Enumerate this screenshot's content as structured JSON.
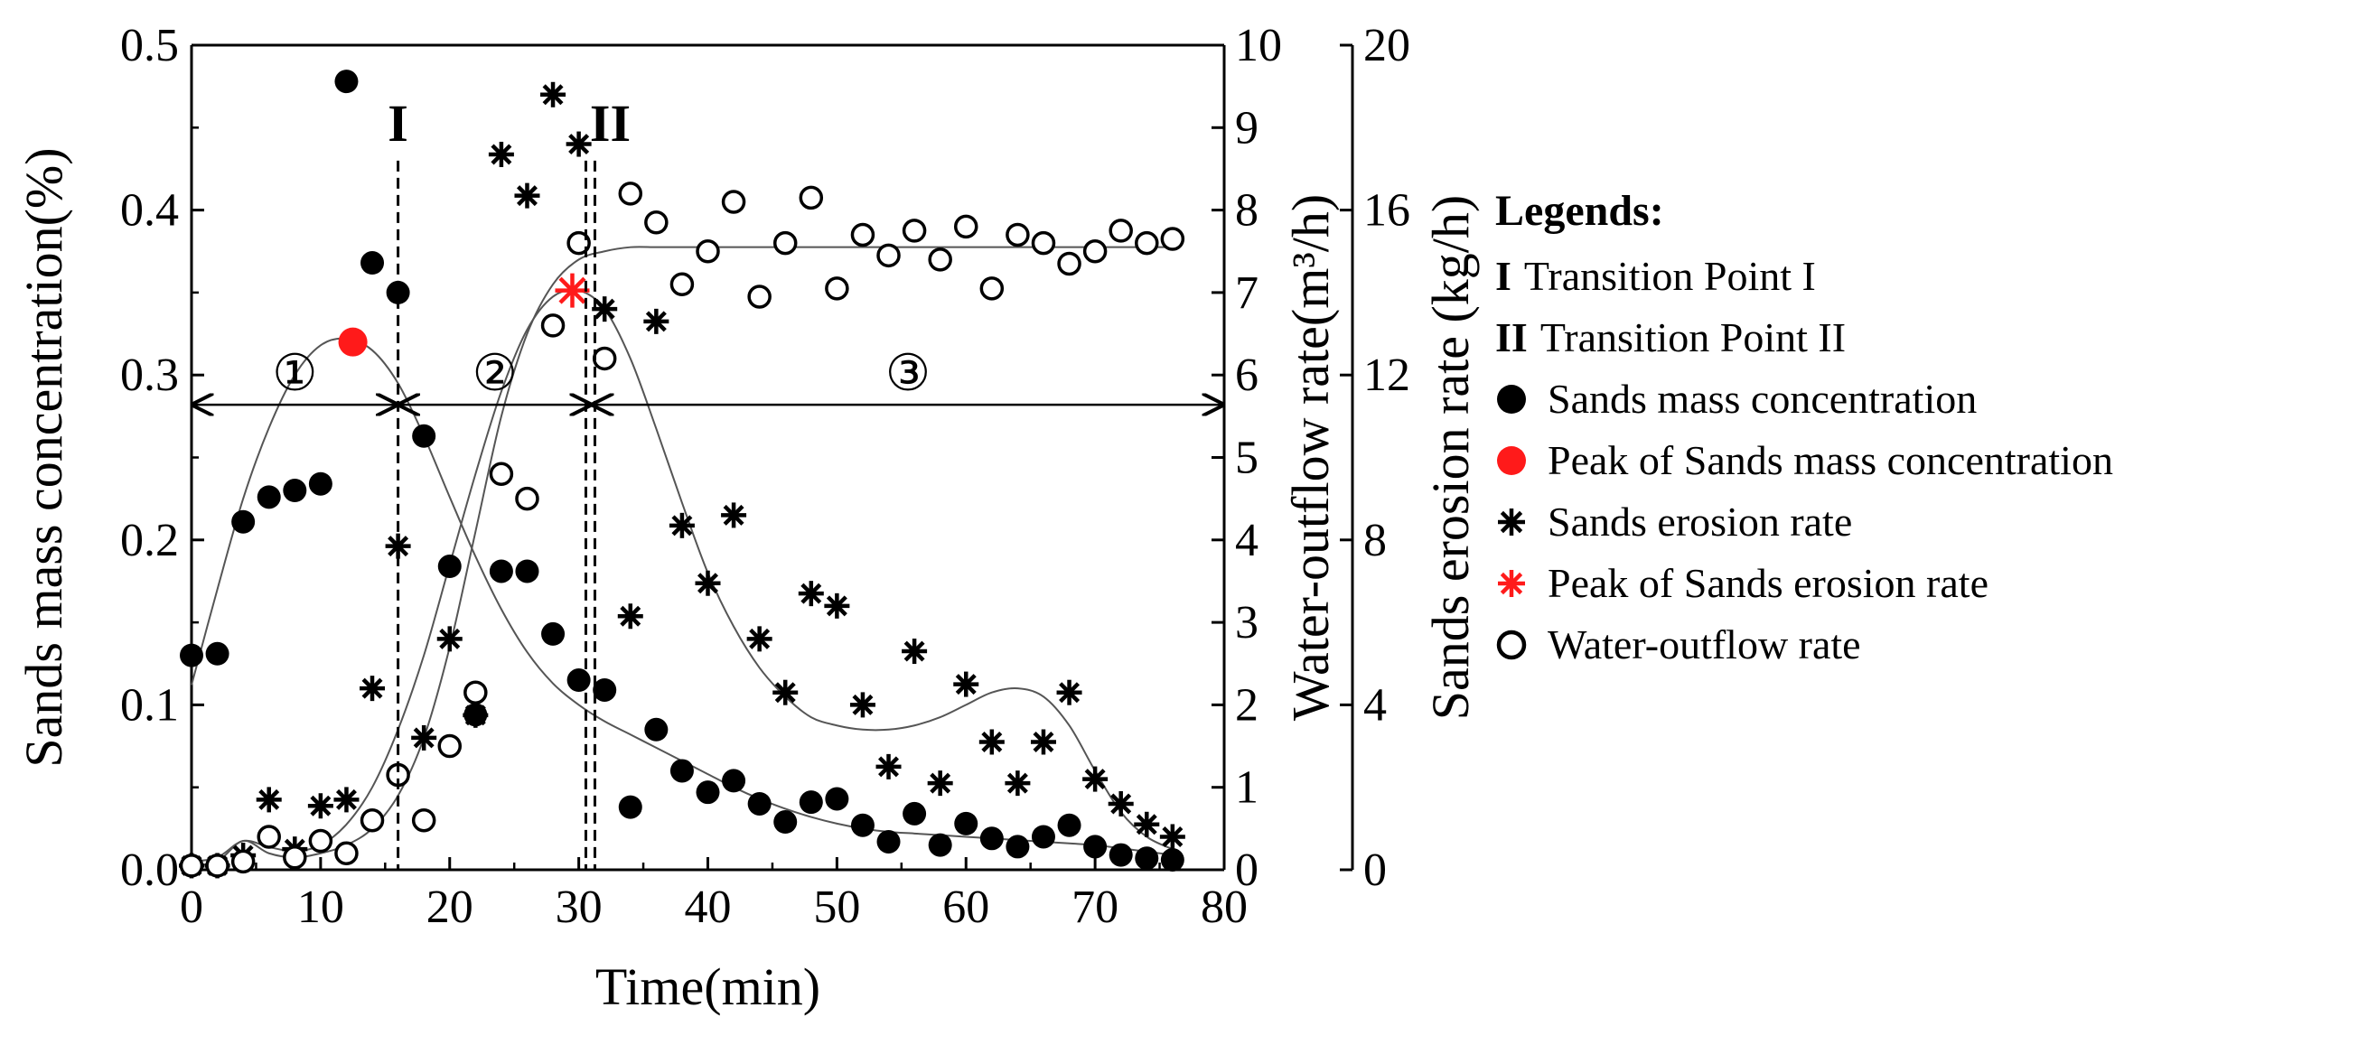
{
  "chart_data": {
    "type": "scatter",
    "xlabel": "Time(min)",
    "ylabel": "Sands mass concentration(%)",
    "ylabel_right1": "Water-outflow rate(m³/h)",
    "ylabel_right2": "Sands erosion rate (kg/h)",
    "xlim": [
      0,
      80
    ],
    "ylim": [
      0,
      0.5
    ],
    "ylim_right1": [
      0,
      10
    ],
    "ylim_right2": [
      0,
      20
    ],
    "x_ticks": [
      "0",
      "10",
      "20",
      "30",
      "40",
      "50",
      "60",
      "70",
      "80"
    ],
    "y_ticks": [
      "0.0",
      "0.1",
      "0.2",
      "0.3",
      "0.4",
      "0.5"
    ],
    "y_right1_ticks": [
      "0",
      "1",
      "2",
      "3",
      "4",
      "5",
      "6",
      "7",
      "8",
      "9",
      "10"
    ],
    "y_right2_ticks": [
      "0",
      "4",
      "8",
      "12",
      "16",
      "20"
    ],
    "transition_lines": [
      {
        "label": "I",
        "x": 16
      },
      {
        "label": "II",
        "x": 30.9
      }
    ],
    "stages": [
      {
        "label": "①",
        "from": 0,
        "to": 16,
        "level": 0.282
      },
      {
        "label": "②",
        "from": 16,
        "to": 31,
        "level": 0.282
      },
      {
        "label": "③",
        "from": 31,
        "to": 80,
        "level": 0.282
      }
    ],
    "series": [
      {
        "name": "Sands mass concentration",
        "axis": "left",
        "marker": "filled-circle",
        "color": "#000000",
        "x": [
          0,
          2,
          4,
          6,
          8,
          10,
          12,
          14,
          16,
          18,
          20,
          22,
          24,
          26,
          28,
          30,
          32,
          34,
          36,
          38,
          40,
          42,
          44,
          46,
          48,
          50,
          52,
          54,
          56,
          58,
          60,
          62,
          64,
          66,
          68,
          70,
          72,
          74,
          76
        ],
        "y": [
          0.13,
          0.131,
          0.211,
          0.226,
          0.23,
          0.234,
          0.478,
          0.368,
          0.35,
          0.263,
          0.184,
          0.094,
          0.181,
          0.181,
          0.143,
          0.115,
          0.109,
          0.038,
          0.085,
          0.06,
          0.047,
          0.054,
          0.04,
          0.029,
          0.041,
          0.043,
          0.027,
          0.017,
          0.034,
          0.015,
          0.028,
          0.019,
          0.014,
          0.02,
          0.027,
          0.014,
          0.009,
          0.007,
          0.006
        ]
      },
      {
        "name": "Peak of Sands mass concentration",
        "axis": "left",
        "marker": "filled-circle",
        "color": "#ff1a1a",
        "x": [
          12.5
        ],
        "y": [
          0.32
        ]
      },
      {
        "name": "Sands erosion rate",
        "axis": "right2",
        "marker": "asterisk",
        "color": "#000000",
        "x": [
          0,
          2,
          4,
          6,
          8,
          10,
          12,
          14,
          16,
          18,
          20,
          22,
          24,
          26,
          28,
          30,
          32,
          34,
          36,
          38,
          40,
          42,
          44,
          46,
          48,
          50,
          52,
          54,
          56,
          58,
          60,
          62,
          64,
          66,
          68,
          70,
          72,
          74,
          76
        ],
        "y": [
          0.1,
          0.1,
          0.35,
          1.7,
          0.5,
          1.55,
          1.7,
          4.4,
          7.85,
          3.2,
          5.6,
          3.75,
          17.35,
          16.35,
          18.8,
          17.6,
          13.6,
          6.15,
          13.3,
          8.35,
          6.95,
          8.6,
          5.6,
          4.3,
          6.7,
          6.4,
          4.0,
          2.5,
          5.3,
          2.1,
          4.5,
          3.1,
          2.1,
          3.1,
          4.3,
          2.2,
          1.6,
          1.1,
          0.8
        ]
      },
      {
        "name": "Peak of Sands erosion rate",
        "axis": "right2",
        "marker": "asterisk",
        "color": "#ff1a1a",
        "x": [
          29.5
        ],
        "y": [
          14.05
        ]
      },
      {
        "name": "Water-outflow rate",
        "axis": "right1",
        "marker": "open-circle",
        "color": "#000000",
        "x": [
          0,
          2,
          4,
          6,
          8,
          10,
          12,
          14,
          16,
          18,
          20,
          22,
          24,
          26,
          28,
          30,
          32,
          34,
          36,
          38,
          40,
          42,
          44,
          46,
          48,
          50,
          52,
          54,
          56,
          58,
          60,
          62,
          64,
          66,
          68,
          70,
          72,
          74,
          76
        ],
        "y": [
          0.05,
          0.05,
          0.1,
          0.4,
          0.15,
          0.35,
          0.2,
          0.6,
          1.15,
          0.6,
          1.5,
          2.15,
          4.8,
          4.5,
          6.6,
          7.6,
          6.2,
          8.2,
          7.85,
          7.1,
          7.5,
          8.1,
          6.95,
          7.6,
          8.15,
          7.05,
          7.7,
          7.45,
          7.75,
          7.4,
          7.8,
          7.05,
          7.7,
          7.6,
          7.35,
          7.5,
          7.75,
          7.6,
          7.65
        ]
      }
    ],
    "fit_curves": [
      {
        "name": "Sands mass concentration fit",
        "axis": "left",
        "x": [
          0,
          2,
          4,
          6,
          8,
          10,
          12,
          14,
          16,
          18,
          20,
          22,
          24,
          26,
          28,
          30,
          32,
          34,
          36,
          38,
          40,
          42,
          44,
          46,
          48,
          50,
          52,
          54,
          56,
          58,
          60,
          62,
          64,
          66,
          68,
          70,
          72,
          74,
          76
        ],
        "y": [
          0.112,
          0.17,
          0.225,
          0.268,
          0.3,
          0.318,
          0.322,
          0.315,
          0.295,
          0.263,
          0.226,
          0.19,
          0.158,
          0.132,
          0.113,
          0.1,
          0.09,
          0.082,
          0.074,
          0.066,
          0.058,
          0.05,
          0.043,
          0.037,
          0.032,
          0.028,
          0.025,
          0.023,
          0.022,
          0.021,
          0.02,
          0.019,
          0.018,
          0.017,
          0.016,
          0.015,
          0.013,
          0.011,
          0.009
        ]
      },
      {
        "name": "Sands erosion rate fit",
        "axis": "right2",
        "x": [
          0,
          2,
          4,
          6,
          8,
          10,
          12,
          14,
          16,
          18,
          20,
          22,
          24,
          26,
          28,
          30,
          32,
          34,
          36,
          38,
          40,
          42,
          44,
          46,
          48,
          50,
          52,
          54,
          56,
          58,
          60,
          62,
          64,
          66,
          68,
          70,
          72,
          74,
          76
        ],
        "y": [
          0.2,
          0.3,
          0.7,
          0.55,
          0.45,
          0.6,
          1.1,
          2.0,
          3.4,
          5.2,
          7.4,
          9.6,
          11.6,
          13.1,
          13.9,
          14.05,
          13.6,
          12.4,
          10.7,
          8.9,
          7.2,
          5.9,
          4.9,
          4.2,
          3.7,
          3.5,
          3.4,
          3.4,
          3.5,
          3.7,
          4.0,
          4.3,
          4.4,
          4.2,
          3.5,
          2.4,
          1.4,
          0.8,
          0.5
        ]
      },
      {
        "name": "Water-outflow rate fit",
        "axis": "right1",
        "x": [
          0,
          2,
          4,
          6,
          8,
          10,
          12,
          14,
          16,
          18,
          20,
          22,
          24,
          26,
          28,
          30,
          32,
          34,
          36,
          38,
          40,
          42,
          44,
          46,
          48,
          50,
          52,
          54,
          56,
          58,
          60,
          62,
          64,
          66,
          68,
          70,
          72,
          74,
          76
        ],
        "y": [
          0.05,
          0.1,
          0.35,
          0.2,
          0.15,
          0.2,
          0.3,
          0.5,
          0.9,
          1.6,
          2.7,
          4.1,
          5.5,
          6.5,
          7.1,
          7.4,
          7.5,
          7.55,
          7.55,
          7.55,
          7.55,
          7.55,
          7.55,
          7.55,
          7.55,
          7.55,
          7.55,
          7.55,
          7.55,
          7.55,
          7.55,
          7.55,
          7.55,
          7.55,
          7.55,
          7.55,
          7.55,
          7.55,
          7.55
        ]
      }
    ],
    "legend": {
      "title": "Legends:",
      "position": "right",
      "items": [
        {
          "key": "I",
          "label": "Transition Point I"
        },
        {
          "key": "II",
          "label": "Transition Point II"
        },
        {
          "key": "filled-circle-black",
          "label": "Sands mass concentration"
        },
        {
          "key": "filled-circle-red",
          "label": "Peak of Sands mass concentration"
        },
        {
          "key": "asterisk-black",
          "label": "Sands erosion rate"
        },
        {
          "key": "asterisk-red",
          "label": "Peak of Sands erosion rate"
        },
        {
          "key": "open-circle-black",
          "label": "Water-outflow rate"
        }
      ]
    }
  }
}
